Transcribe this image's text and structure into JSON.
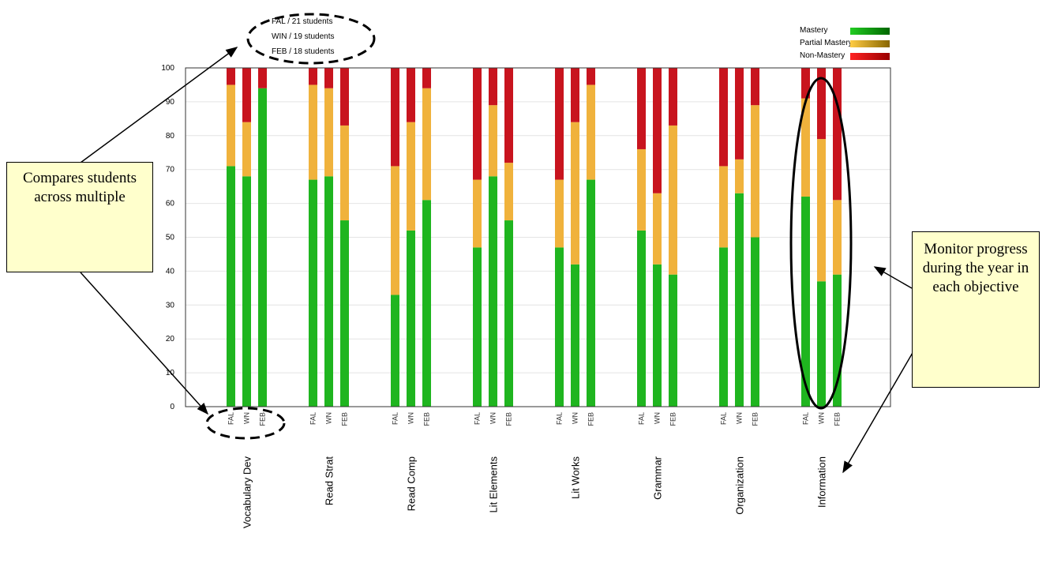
{
  "chart_data": {
    "type": "bar",
    "stacked": true,
    "ylim": [
      0,
      100
    ],
    "yticks": [
      0,
      10,
      20,
      30,
      40,
      50,
      60,
      70,
      80,
      90,
      100
    ],
    "categories": [
      "Vocabulary Dev",
      "Read Strat",
      "Read Comp",
      "Lit Elements",
      "Lit Works",
      "Grammar",
      "Organization",
      "Information"
    ],
    "periods": [
      "FAL",
      "WIN",
      "FEB"
    ],
    "period_tick_labels": [
      "FAL",
      "WN",
      "FEB"
    ],
    "period_notes": [
      "FAL / 21 students",
      "WIN / 19 students",
      "FEB / 18 students"
    ],
    "legend": {
      "position": "top-right",
      "entries": [
        {
          "label": "Mastery",
          "gradient": [
            "#22cc22",
            "#006600"
          ]
        },
        {
          "label": "Partial Mastery",
          "gradient": [
            "#ffcc44",
            "#886600"
          ]
        },
        {
          "label": "Non-Mastery",
          "gradient": [
            "#ff2222",
            "#990000"
          ]
        }
      ]
    },
    "colors": {
      "mastery": "#1fb51f",
      "partial": "#f0b23c",
      "non_mastery": "#c8141e"
    },
    "grid": true,
    "series": [
      {
        "name": "Mastery",
        "values": [
          [
            71,
            68,
            94
          ],
          [
            67,
            68,
            55
          ],
          [
            33,
            52,
            61
          ],
          [
            47,
            68,
            55
          ],
          [
            47,
            42,
            67
          ],
          [
            52,
            42,
            39
          ],
          [
            47,
            63,
            50
          ],
          [
            62,
            37,
            39
          ]
        ]
      },
      {
        "name": "Partial Mastery",
        "values": [
          [
            24,
            16,
            0
          ],
          [
            28,
            26,
            28
          ],
          [
            38,
            32,
            33
          ],
          [
            20,
            21,
            17
          ],
          [
            20,
            42,
            28
          ],
          [
            24,
            21,
            44
          ],
          [
            24,
            10,
            39
          ],
          [
            29,
            42,
            22
          ]
        ]
      },
      {
        "name": "Non-Mastery",
        "values": [
          [
            5,
            16,
            6
          ],
          [
            5,
            6,
            17
          ],
          [
            29,
            16,
            6
          ],
          [
            33,
            11,
            28
          ],
          [
            33,
            16,
            5
          ],
          [
            24,
            37,
            17
          ],
          [
            29,
            27,
            11
          ],
          [
            9,
            21,
            39
          ]
        ]
      }
    ]
  },
  "annotations": {
    "left_callout": "Compares students across multiple",
    "right_callout": "Monitor progress during the year in each objective"
  }
}
